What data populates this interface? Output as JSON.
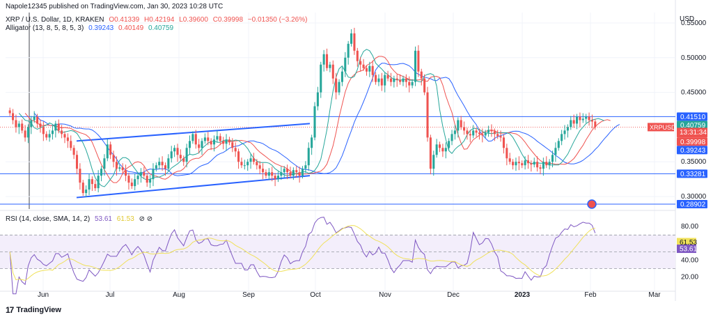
{
  "header": {
    "published": "Napole12345 published on TradingView.com, Jan 30, 2023 10:28 UTC"
  },
  "legend": {
    "symbol": "XRP / U.S. Dollar, 1D, KRAKEN",
    "open": "O0.41339",
    "high": "H0.42194",
    "low": "L0.39600",
    "close": "C0.39998",
    "change": "−0.01350 (−3.26%)",
    "alligator_label": "Alligator (13, 8, 5, 8, 5, 3)",
    "alligator_jaw": "0.39243",
    "alligator_teeth": "0.40149",
    "alligator_lips": "0.40759",
    "rsi_label": "RSI (14, close, SMA, 14, 2)",
    "rsi_value": "53.61",
    "rsi_sma": "61.53",
    "rsi_icons": "⊘ ⊘"
  },
  "brand": {
    "logo": "17",
    "name": "TradingView"
  },
  "colors": {
    "up": "#26a69a",
    "down": "#ef5350",
    "jaw": "#2962ff",
    "teeth": "#ef5350",
    "lips": "#26a69a",
    "rsi": "#7e57c2",
    "rsi_sma": "#f0e15a",
    "line": "#2962ff"
  },
  "chart_data": {
    "type": "candlestick",
    "currency": "USD",
    "symbol_tag": "XRPUSD",
    "countdown": "13:31:34",
    "price_ticks": [
      "0.55000",
      "0.50000",
      "0.45000",
      "0.35000",
      "0.30000"
    ],
    "price_range": [
      0.282,
      0.565
    ],
    "x_labels": [
      "Jun",
      "Jul",
      "Aug",
      "Sep",
      "Oct",
      "Nov",
      "Dec",
      "2023",
      "Feb",
      "Mar"
    ],
    "horizontal_lines": [
      0.4151,
      0.33281,
      0.28902
    ],
    "price_line": 0.39998,
    "axis_tags": [
      {
        "value": "0.41510",
        "price": 0.4151,
        "color": "#2962ff"
      },
      {
        "value": "0.40759",
        "price": 0.40759,
        "color": "#26a69a"
      },
      {
        "value": "0.40149",
        "price": 0.40149,
        "color": "#ef5350"
      },
      {
        "value": "0.39998",
        "price": 0.39998,
        "color": "#ef5350"
      },
      {
        "value": "0.39243",
        "price": 0.39243,
        "color": "#2962ff"
      },
      {
        "value": "0.33281",
        "price": 0.33281,
        "color": "#2962ff"
      },
      {
        "value": "0.28902",
        "price": 0.28902,
        "color": "#2962ff"
      }
    ],
    "channel": {
      "upper": [
        [
          "May 29",
          0.38
        ],
        [
          "Sep 28",
          0.405
        ]
      ],
      "lower": [
        [
          "May 29",
          0.2985
        ],
        [
          "Sep 28",
          0.33
        ]
      ]
    },
    "series_close": [
      0.42,
      0.41,
      0.4,
      0.405,
      0.395,
      0.385,
      0.4,
      0.41,
      0.415,
      0.405,
      0.4,
      0.39,
      0.385,
      0.39,
      0.395,
      0.405,
      0.395,
      0.39,
      0.385,
      0.38,
      0.37,
      0.36,
      0.34,
      0.32,
      0.305,
      0.31,
      0.325,
      0.318,
      0.312,
      0.33,
      0.34,
      0.355,
      0.375,
      0.36,
      0.35,
      0.34,
      0.342,
      0.338,
      0.33,
      0.32,
      0.315,
      0.325,
      0.33,
      0.335,
      0.33,
      0.32,
      0.325,
      0.34,
      0.345,
      0.35,
      0.345,
      0.34,
      0.355,
      0.365,
      0.37,
      0.36,
      0.355,
      0.35,
      0.37,
      0.38,
      0.39,
      0.375,
      0.37,
      0.38,
      0.385,
      0.38,
      0.375,
      0.382,
      0.387,
      0.38,
      0.376,
      0.382,
      0.378,
      0.37,
      0.365,
      0.35,
      0.345,
      0.345,
      0.35,
      0.355,
      0.35,
      0.345,
      0.34,
      0.335,
      0.33,
      0.335,
      0.33,
      0.325,
      0.33,
      0.335,
      0.34,
      0.335,
      0.33,
      0.338,
      0.335,
      0.33,
      0.34,
      0.345,
      0.37,
      0.385,
      0.43,
      0.45,
      0.49,
      0.505,
      0.485,
      0.49,
      0.47,
      0.45,
      0.465,
      0.48,
      0.5,
      0.52,
      0.535,
      0.51,
      0.495,
      0.49,
      0.485,
      0.48,
      0.488,
      0.475,
      0.465,
      0.47,
      0.46,
      0.475,
      0.47,
      0.465,
      0.47,
      0.468,
      0.465,
      0.47,
      0.465,
      0.46,
      0.465,
      0.51,
      0.48,
      0.47,
      0.45,
      0.385,
      0.34,
      0.36,
      0.375,
      0.37,
      0.365,
      0.37,
      0.38,
      0.39,
      0.395,
      0.41,
      0.4,
      0.395,
      0.39,
      0.388,
      0.395,
      0.392,
      0.39,
      0.388,
      0.392,
      0.396,
      0.394,
      0.39,
      0.387,
      0.385,
      0.37,
      0.355,
      0.35,
      0.345,
      0.35,
      0.348,
      0.345,
      0.352,
      0.348,
      0.346,
      0.35,
      0.342,
      0.34,
      0.35,
      0.345,
      0.35,
      0.36,
      0.37,
      0.38,
      0.39,
      0.395,
      0.4,
      0.41,
      0.405,
      0.415,
      0.41,
      0.412,
      0.415,
      0.41,
      0.408,
      0.4
    ],
    "rsi": {
      "label": "RSI (14, close, SMA, 14, 2)",
      "ticks": [
        "80.00",
        "40.00",
        "20.00"
      ],
      "range": [
        18,
        86
      ],
      "band_upper": 70,
      "band_mid": 50,
      "band_lower": 30,
      "value": 53.61,
      "sma": 61.53
    }
  }
}
